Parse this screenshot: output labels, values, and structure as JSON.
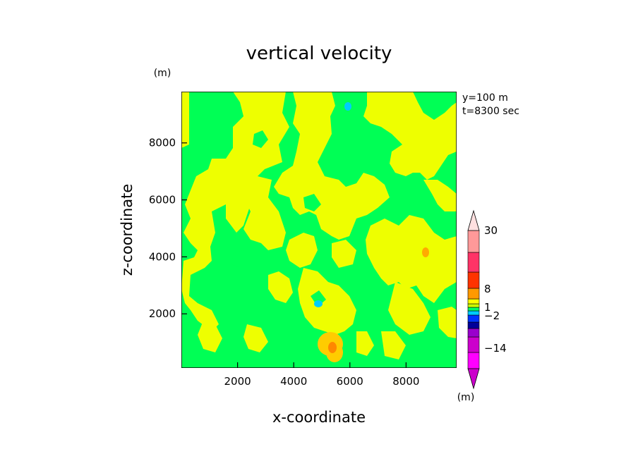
{
  "chart_data": {
    "type": "heatmap",
    "title": "vertical velocity",
    "xlabel": "x-coordinate",
    "ylabel": "z-coordinate",
    "x_unit": "(m)",
    "y_unit": "(m)",
    "xlim": [
      0,
      9800
    ],
    "ylim": [
      100,
      9800
    ],
    "x_ticks": [
      "2000",
      "4000",
      "6000",
      "8000"
    ],
    "x_tick_values": [
      2000,
      4000,
      6000,
      8000
    ],
    "y_ticks": [
      "2000",
      "4000",
      "6000",
      "8000"
    ],
    "y_tick_values": [
      2000,
      4000,
      6000,
      8000
    ],
    "info_lines": [
      "y=100 m",
      "t=8300 sec"
    ],
    "colorbar": {
      "unit": "(m)",
      "labels": [
        "30",
        "8",
        "1",
        "-2",
        "-14"
      ],
      "bands": [
        "#ff00ff",
        "#cc00cc",
        "#9900cc",
        "#000099",
        "#0033ff",
        "#00ccff",
        "#00ff66",
        "#ccff00",
        "#ffff00",
        "#ff9900",
        "#ff3300",
        "#ff3366",
        "#ff9999",
        "#ffcccc"
      ]
    },
    "regions": [
      {
        "name": "background",
        "color": "#00ff55",
        "description": "near-zero vertical velocity"
      },
      {
        "name": "positive",
        "color": "#eeff00",
        "description": "weak positive vertical velocity"
      },
      {
        "name": "strong-positive",
        "color": "#ffcc00",
        "x": 5300,
        "z": 800
      },
      {
        "name": "strongest",
        "color": "#ff8800",
        "x": 5400,
        "z": 600
      },
      {
        "name": "negative",
        "color": "#00ccff",
        "x": 4900,
        "z": 2300
      },
      {
        "name": "negative",
        "color": "#00ccff",
        "x": 6000,
        "z": 9400
      }
    ]
  }
}
